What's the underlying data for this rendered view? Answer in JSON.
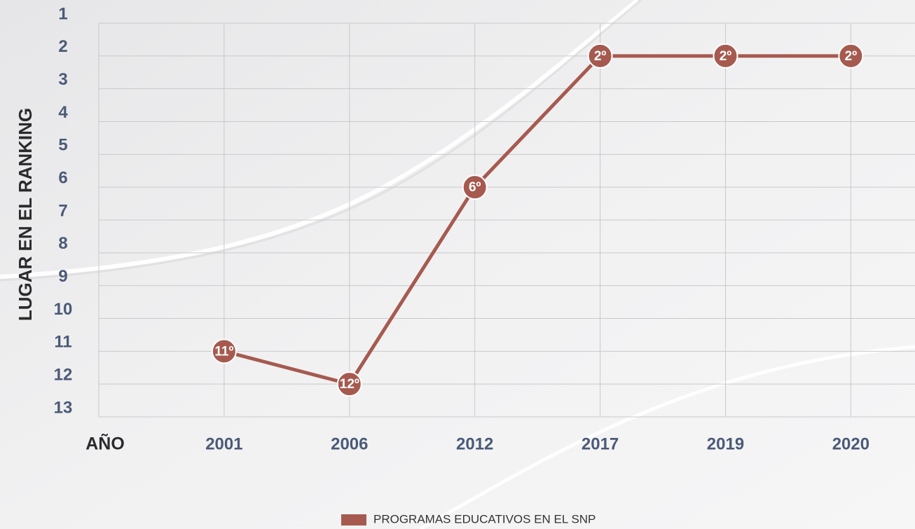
{
  "chart_data": {
    "type": "line",
    "ylabel": "LUGAR EN EL RANKING",
    "xlabel": "AÑO",
    "categories": [
      "2001",
      "2006",
      "2012",
      "2017",
      "2019",
      "2020"
    ],
    "series": [
      {
        "name": "PROGRAMAS EDUCATIVOS EN EL SNP",
        "color": "#a65a4f",
        "values": [
          11,
          12,
          6,
          2,
          2,
          2
        ],
        "value_labels": [
          "11º",
          "12º",
          "6º",
          "2º",
          "2º",
          "2º"
        ]
      }
    ],
    "ylim": [
      1,
      13
    ],
    "yticks": [
      1,
      2,
      3,
      4,
      5,
      6,
      7,
      8,
      9,
      10,
      11,
      12,
      13
    ],
    "y_inverted": true,
    "grid": true,
    "legend": "bottom"
  }
}
